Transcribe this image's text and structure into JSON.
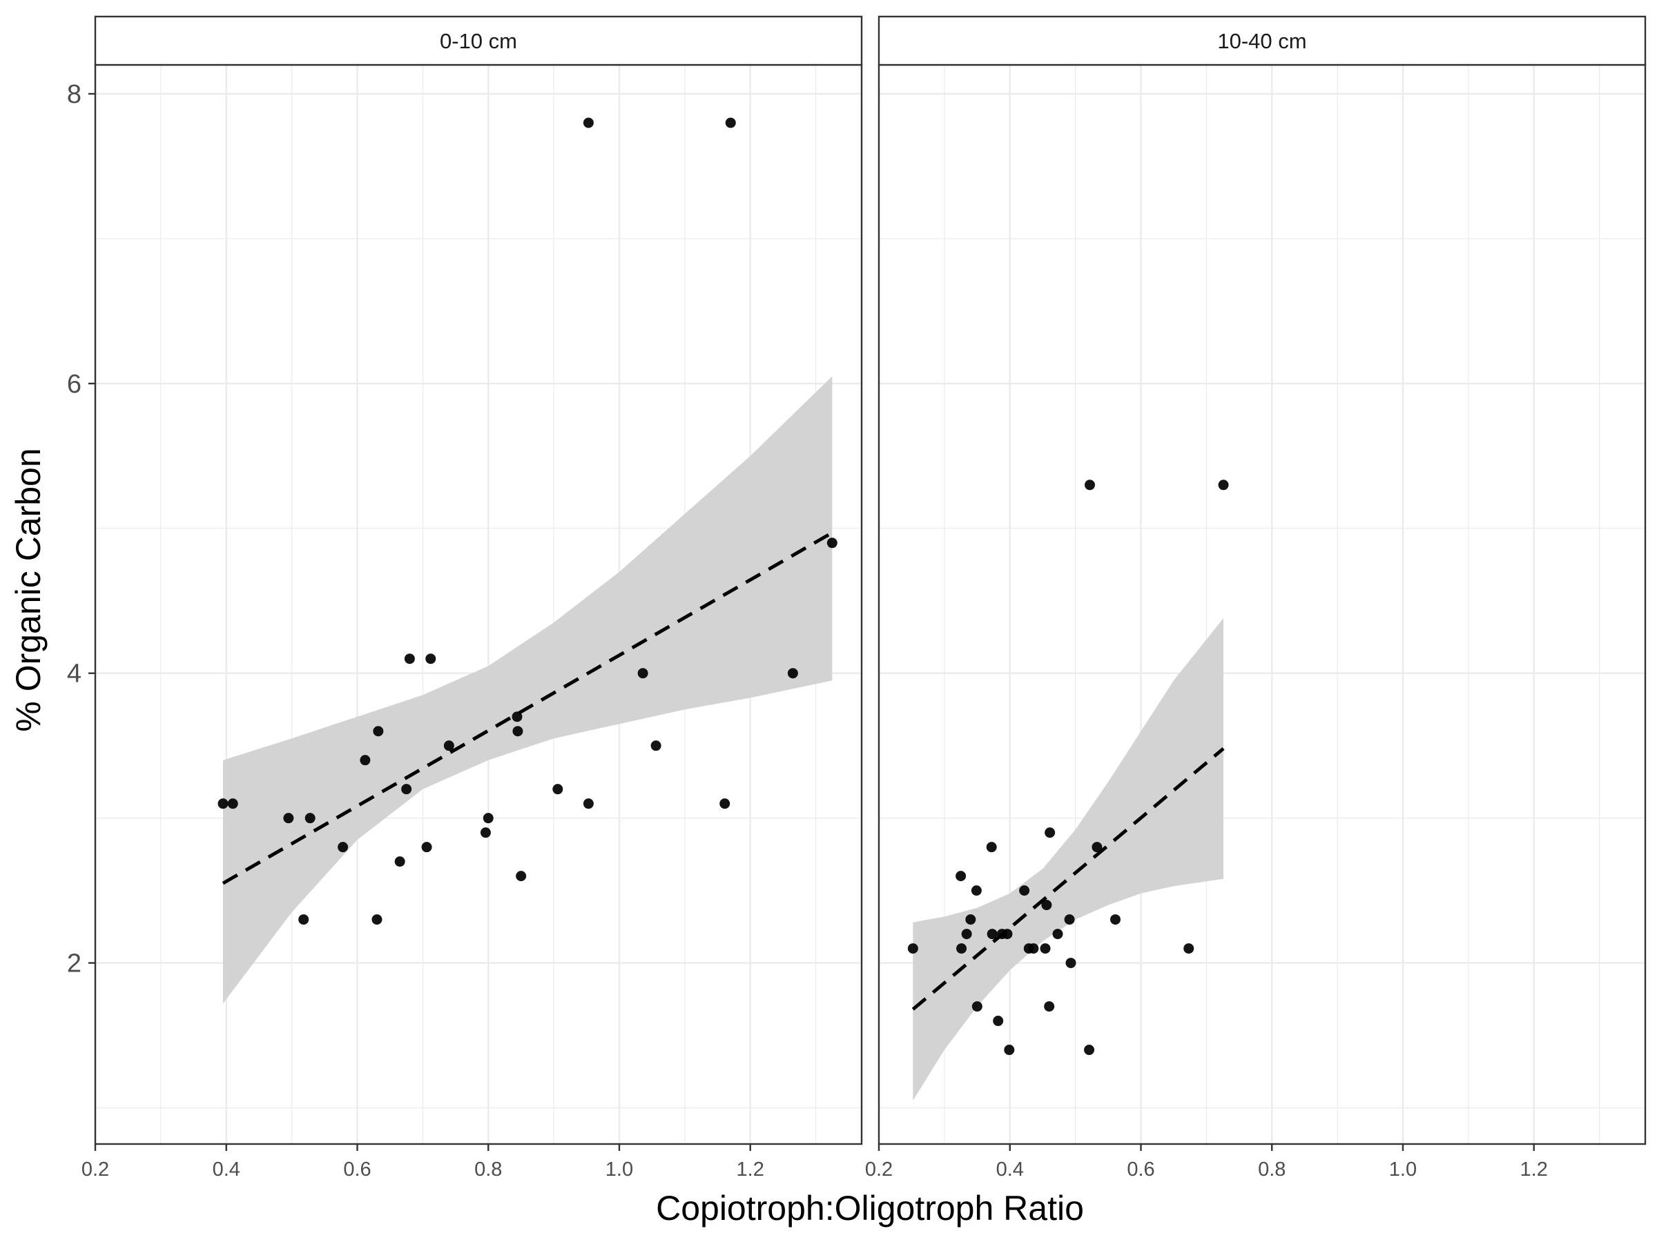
{
  "chart_data": {
    "type": "scatter",
    "xlabel": "Copiotroph:Oligotroph Ratio",
    "ylabel": "% Organic Carbon",
    "xlim": [
      0.2,
      1.37
    ],
    "ylim": [
      0.75,
      8.2
    ],
    "x_ticks": [
      "0.2",
      "0.4",
      "0.6",
      "0.8",
      "1.0",
      "1.2"
    ],
    "y_ticks": [
      "2",
      "4",
      "6",
      "8"
    ],
    "grid": true,
    "colors": {
      "points": "#000000",
      "band": "#d3d3d3",
      "grid": "#ebebeb",
      "axis": "#333333"
    },
    "facets": [
      {
        "label": "0-10 cm",
        "points": [
          {
            "x": 0.395,
            "y": 3.1
          },
          {
            "x": 0.41,
            "y": 3.1
          },
          {
            "x": 0.495,
            "y": 3.0
          },
          {
            "x": 0.518,
            "y": 2.3
          },
          {
            "x": 0.528,
            "y": 3.0
          },
          {
            "x": 0.578,
            "y": 2.8
          },
          {
            "x": 0.612,
            "y": 3.4
          },
          {
            "x": 0.63,
            "y": 2.3
          },
          {
            "x": 0.632,
            "y": 3.6
          },
          {
            "x": 0.665,
            "y": 2.7
          },
          {
            "x": 0.675,
            "y": 3.2
          },
          {
            "x": 0.68,
            "y": 4.1
          },
          {
            "x": 0.706,
            "y": 2.8
          },
          {
            "x": 0.712,
            "y": 4.1
          },
          {
            "x": 0.74,
            "y": 3.5
          },
          {
            "x": 0.796,
            "y": 2.9
          },
          {
            "x": 0.8,
            "y": 3.0
          },
          {
            "x": 0.844,
            "y": 3.7
          },
          {
            "x": 0.845,
            "y": 3.6
          },
          {
            "x": 0.85,
            "y": 2.6
          },
          {
            "x": 0.906,
            "y": 3.2
          },
          {
            "x": 0.953,
            "y": 3.1
          },
          {
            "x": 0.953,
            "y": 7.8
          },
          {
            "x": 1.036,
            "y": 4.0
          },
          {
            "x": 1.056,
            "y": 3.5
          },
          {
            "x": 1.161,
            "y": 3.1
          },
          {
            "x": 1.17,
            "y": 7.8
          },
          {
            "x": 1.265,
            "y": 4.0
          },
          {
            "x": 1.325,
            "y": 4.9
          }
        ],
        "fit": {
          "x": [
            0.395,
            1.325
          ],
          "y": [
            2.55,
            4.97
          ]
        },
        "band": {
          "x": [
            0.395,
            0.5,
            0.6,
            0.7,
            0.8,
            0.9,
            1.0,
            1.1,
            1.2,
            1.325
          ],
          "lower": [
            1.72,
            2.35,
            2.85,
            3.2,
            3.4,
            3.55,
            3.65,
            3.75,
            3.83,
            3.95
          ],
          "upper": [
            3.4,
            3.55,
            3.7,
            3.85,
            4.05,
            4.35,
            4.7,
            5.1,
            5.5,
            6.05
          ]
        }
      },
      {
        "label": "10-40 cm",
        "points": [
          {
            "x": 0.252,
            "y": 2.1
          },
          {
            "x": 0.325,
            "y": 2.6
          },
          {
            "x": 0.326,
            "y": 2.1
          },
          {
            "x": 0.334,
            "y": 2.2
          },
          {
            "x": 0.34,
            "y": 2.3
          },
          {
            "x": 0.349,
            "y": 2.5
          },
          {
            "x": 0.35,
            "y": 1.7
          },
          {
            "x": 0.372,
            "y": 2.8
          },
          {
            "x": 0.373,
            "y": 2.2
          },
          {
            "x": 0.382,
            "y": 1.6
          },
          {
            "x": 0.388,
            "y": 2.2
          },
          {
            "x": 0.396,
            "y": 2.2
          },
          {
            "x": 0.399,
            "y": 1.4
          },
          {
            "x": 0.422,
            "y": 2.5
          },
          {
            "x": 0.429,
            "y": 2.1
          },
          {
            "x": 0.436,
            "y": 2.1
          },
          {
            "x": 0.454,
            "y": 2.1
          },
          {
            "x": 0.456,
            "y": 2.4
          },
          {
            "x": 0.46,
            "y": 1.7
          },
          {
            "x": 0.461,
            "y": 2.9
          },
          {
            "x": 0.473,
            "y": 2.2
          },
          {
            "x": 0.491,
            "y": 2.3
          },
          {
            "x": 0.493,
            "y": 2.0
          },
          {
            "x": 0.521,
            "y": 1.4
          },
          {
            "x": 0.522,
            "y": 5.3
          },
          {
            "x": 0.533,
            "y": 2.8
          },
          {
            "x": 0.561,
            "y": 2.3
          },
          {
            "x": 0.673,
            "y": 2.1
          },
          {
            "x": 0.726,
            "y": 5.3
          }
        ],
        "fit": {
          "x": [
            0.252,
            0.726
          ],
          "y": [
            1.68,
            3.48
          ]
        },
        "band": {
          "x": [
            0.252,
            0.3,
            0.35,
            0.4,
            0.45,
            0.5,
            0.55,
            0.6,
            0.65,
            0.726
          ],
          "lower": [
            1.05,
            1.4,
            1.7,
            1.95,
            2.15,
            2.3,
            2.4,
            2.48,
            2.53,
            2.58
          ],
          "upper": [
            2.28,
            2.32,
            2.38,
            2.48,
            2.65,
            2.92,
            3.25,
            3.6,
            3.95,
            4.38
          ]
        }
      }
    ]
  }
}
